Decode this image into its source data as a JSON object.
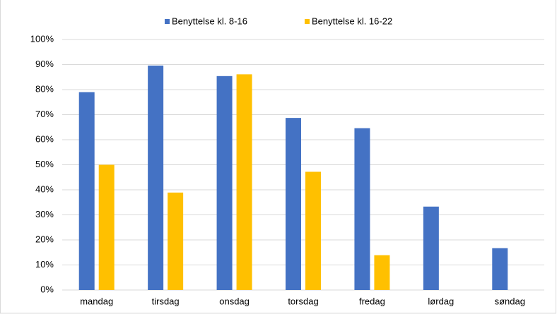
{
  "chart_data": {
    "type": "bar",
    "categories": [
      "mandag",
      "tirsdag",
      "onsdag",
      "torsdag",
      "fredag",
      "lørdag",
      "søndag"
    ],
    "series": [
      {
        "name": "Benyttelse kl. 8-16",
        "color": "#4472c4",
        "values": [
          79,
          89.6,
          85.4,
          68.7,
          64.6,
          33.3,
          16.7
        ]
      },
      {
        "name": "Benyttelse kl. 16-22",
        "color": "#ffc000",
        "values": [
          50,
          38.9,
          86.1,
          47.2,
          13.9,
          0,
          0
        ]
      }
    ],
    "ylim": [
      0,
      100
    ],
    "yticks": [
      {
        "value": 0,
        "label": "0%"
      },
      {
        "value": 10,
        "label": "10%"
      },
      {
        "value": 20,
        "label": "20%"
      },
      {
        "value": 30,
        "label": "30%"
      },
      {
        "value": 40,
        "label": "40%"
      },
      {
        "value": 50,
        "label": "50%"
      },
      {
        "value": 60,
        "label": "60%"
      },
      {
        "value": 70,
        "label": "70%"
      },
      {
        "value": 80,
        "label": "80%"
      },
      {
        "value": 90,
        "label": "90%"
      },
      {
        "value": 100,
        "label": "100%"
      }
    ],
    "grid": true,
    "legend": "top"
  }
}
